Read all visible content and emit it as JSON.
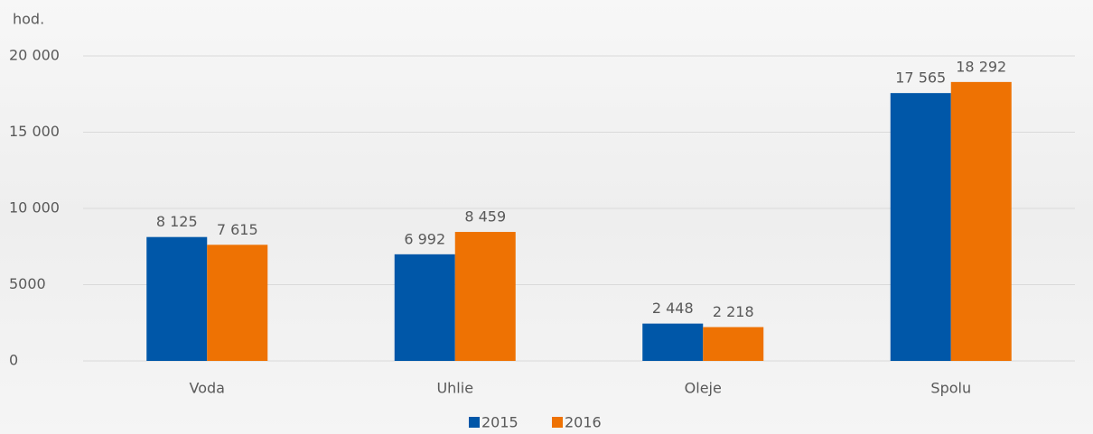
{
  "chart_data": {
    "type": "bar",
    "y_label": "hod.",
    "categories": [
      "Voda",
      "Uhlie",
      "Oleje",
      "Spolu"
    ],
    "series": [
      {
        "name": "2015",
        "color": "#0057a8",
        "values": [
          8125,
          6992,
          2448,
          17565
        ],
        "value_labels": [
          "8 125",
          "6 992",
          "2 448",
          "17 565"
        ]
      },
      {
        "name": "2016",
        "color": "#ee7203",
        "values": [
          7615,
          8459,
          2218,
          18292
        ],
        "value_labels": [
          "7 615",
          "8 459",
          "2 218",
          "18 292"
        ]
      }
    ],
    "ylim": [
      0,
      20000
    ],
    "yticks": [
      0,
      5000,
      {
        "value": 10000,
        "label": "10 000"
      },
      {
        "value": 15000,
        "label": "15 000"
      },
      {
        "value": 20000,
        "label": "20 000"
      }
    ],
    "grid": true,
    "legend": "bottom"
  }
}
